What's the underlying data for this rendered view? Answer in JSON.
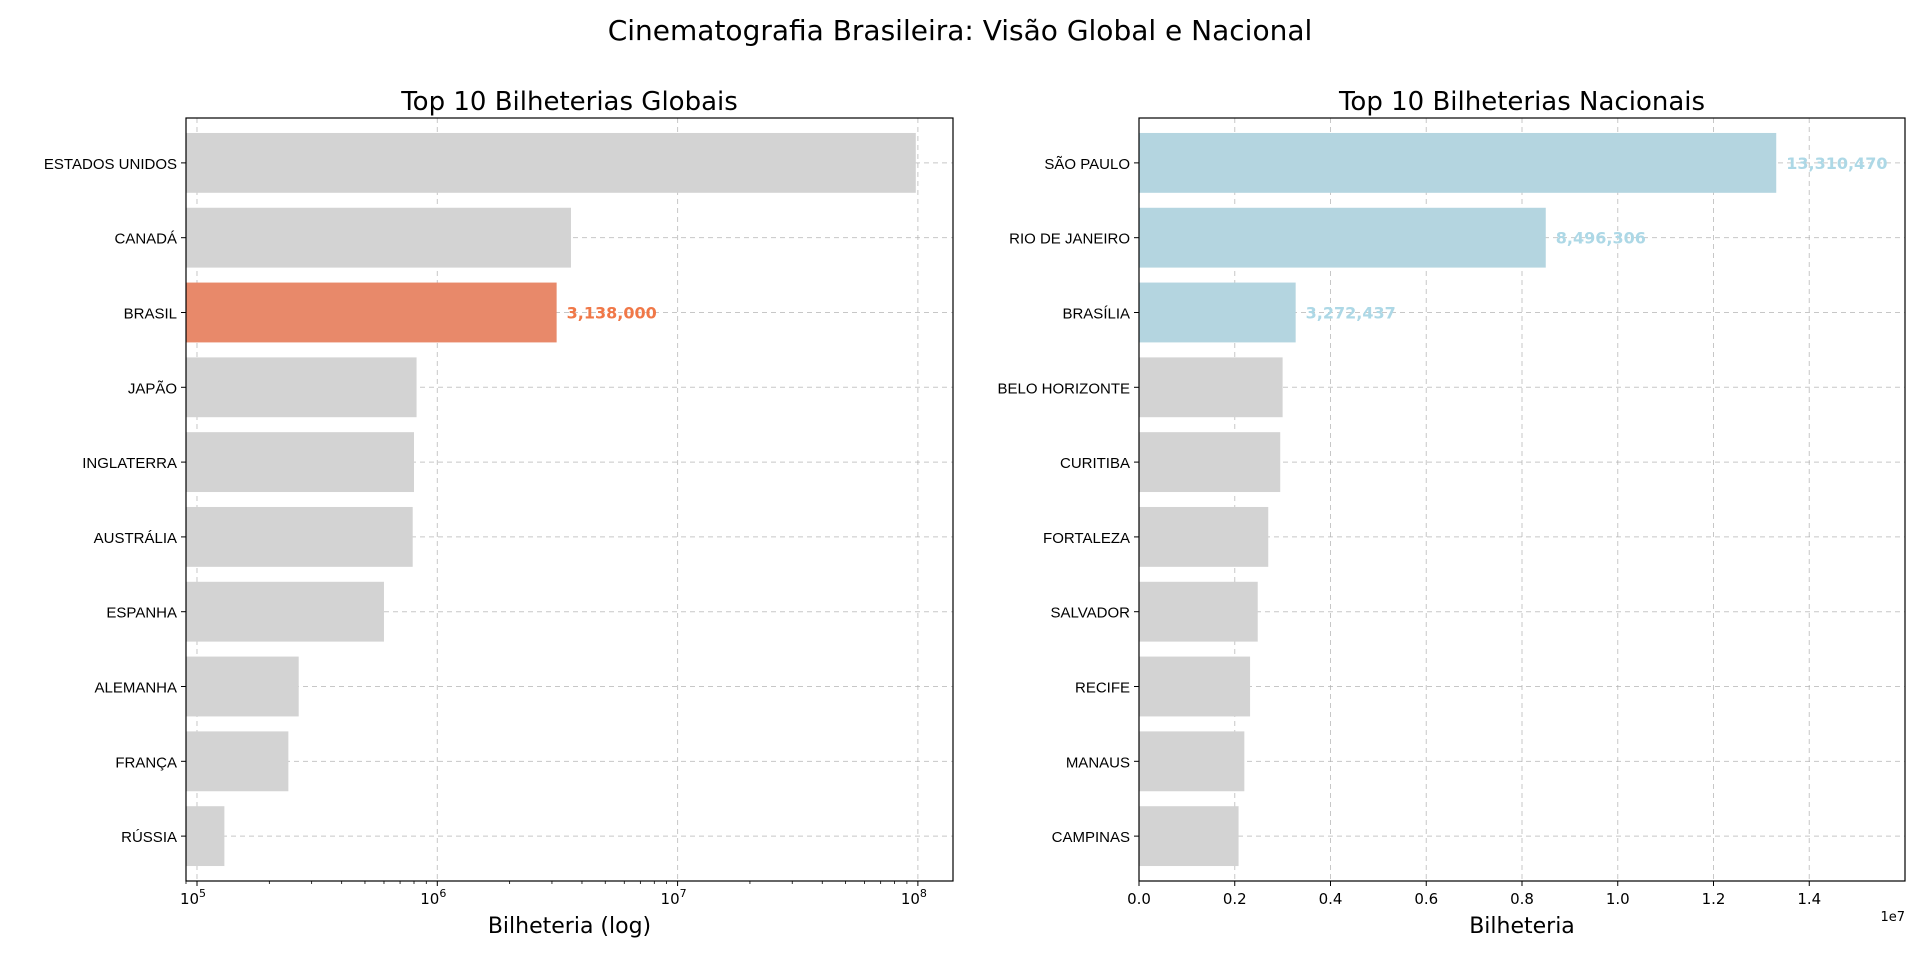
{
  "figure": {
    "suptitle": "Cinematografia Brasileira: Visão Global e Nacional"
  },
  "chart_data": [
    {
      "type": "bar",
      "orientation": "horizontal",
      "title": "Top 10 Bilheterias Globais",
      "xlabel": "Bilheteria (log)",
      "ylabel": "",
      "xscale": "log",
      "xlim": [
        90000,
        140000000
      ],
      "x_ticks": [
        100000,
        1000000,
        10000000,
        100000000
      ],
      "x_tick_labels": [
        {
          "base": "10",
          "exp": "5"
        },
        {
          "base": "10",
          "exp": "6"
        },
        {
          "base": "10",
          "exp": "7"
        },
        {
          "base": "10",
          "exp": "8"
        }
      ],
      "grid": true,
      "categories": [
        "ESTADOS UNIDOS",
        "CANADÁ",
        "BRASIL",
        "JAPÃO",
        "INGLATERRA",
        "AUSTRÁLIA",
        "ESPANHA",
        "ALEMANHA",
        "FRANÇA",
        "RÚSSIA"
      ],
      "values": [
        98000000,
        3600000,
        3138000,
        820000,
        800000,
        790000,
        600000,
        265000,
        240000,
        130000
      ],
      "highlight": [
        {
          "index": 2,
          "label": "3,138,000",
          "color": "#E8896A",
          "label_color": "#F07848"
        }
      ],
      "base_color": "#D3D3D3"
    },
    {
      "type": "bar",
      "orientation": "horizontal",
      "title": "Top 10 Bilheterias Nacionais",
      "xlabel": "Bilheteria",
      "ylabel": "",
      "xscale": "linear",
      "xlim": [
        0,
        16000000
      ],
      "x_ticks": [
        0,
        2000000,
        4000000,
        6000000,
        8000000,
        10000000,
        12000000,
        14000000
      ],
      "x_tick_labels": [
        "0.0",
        "0.2",
        "0.4",
        "0.6",
        "0.8",
        "1.0",
        "1.2",
        "1.4"
      ],
      "offset_label": "1e7",
      "grid": true,
      "categories": [
        "SÃO PAULO",
        "RIO DE JANEIRO",
        "BRASÍLIA",
        "BELO HORIZONTE",
        "CURITIBA",
        "FORTALEZA",
        "SALVADOR",
        "RECIFE",
        "MANAUS",
        "CAMPINAS"
      ],
      "values": [
        13310470,
        8496306,
        3272437,
        3000000,
        2950000,
        2700000,
        2480000,
        2320000,
        2200000,
        2080000
      ],
      "highlight": [
        {
          "index": 0,
          "label": "13,310,470",
          "color": "#B4D5E0",
          "label_color": "#ADD8E6"
        },
        {
          "index": 1,
          "label": "8,496,306",
          "color": "#B4D5E0",
          "label_color": "#ADD8E6"
        },
        {
          "index": 2,
          "label": "3,272,437",
          "color": "#B4D5E0",
          "label_color": "#ADD8E6"
        }
      ],
      "base_color": "#D3D3D3"
    }
  ]
}
